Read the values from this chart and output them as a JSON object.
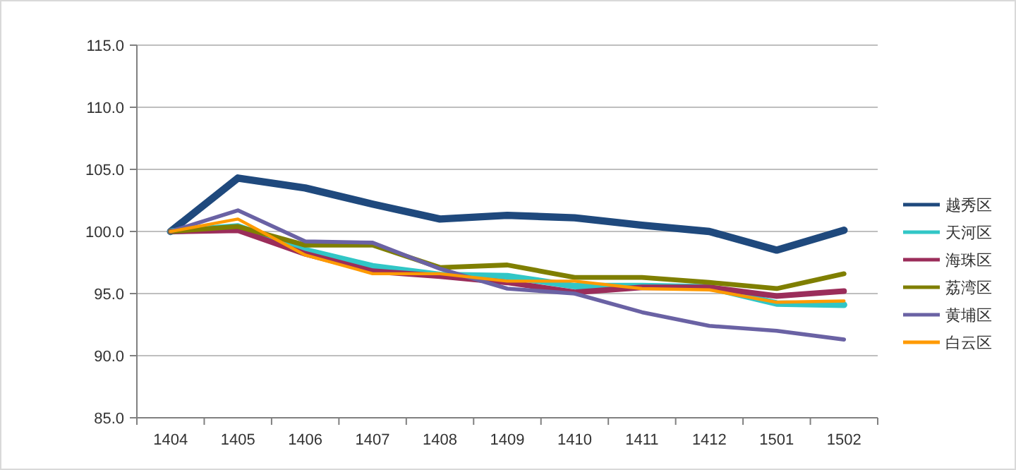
{
  "chart_data": {
    "type": "line",
    "categories": [
      "1404",
      "1405",
      "1406",
      "1407",
      "1408",
      "1409",
      "1410",
      "1411",
      "1412",
      "1501",
      "1502"
    ],
    "series": [
      {
        "name": "越秀区",
        "color": "#1f497d",
        "values": [
          100,
          104.3,
          103.5,
          102.2,
          101.0,
          101.3,
          101.1,
          100.5,
          100.0,
          98.5,
          100.1
        ]
      },
      {
        "name": "天河区",
        "color": "#31c6c6",
        "values": [
          100,
          100.4,
          98.5,
          97.2,
          96.5,
          96.4,
          95.6,
          95.6,
          95.5,
          94.2,
          94.1
        ]
      },
      {
        "name": "海珠区",
        "color": "#9b2d5a",
        "values": [
          100,
          100.1,
          98.2,
          96.8,
          96.4,
          95.9,
          95.1,
          95.5,
          95.5,
          94.8,
          95.2
        ]
      },
      {
        "name": "荔湾区",
        "color": "#7f7f00",
        "values": [
          100,
          100.4,
          98.9,
          98.9,
          97.1,
          97.3,
          96.3,
          96.3,
          95.9,
          95.4,
          96.6
        ]
      },
      {
        "name": "黄埔区",
        "color": "#6a62a4",
        "values": [
          100,
          101.7,
          99.2,
          99.1,
          97.0,
          95.4,
          95.0,
          93.5,
          92.4,
          92.0,
          91.3
        ]
      },
      {
        "name": "白云区",
        "color": "#ff9a00",
        "values": [
          100,
          101.0,
          98.1,
          96.6,
          96.6,
          96.0,
          96.0,
          95.4,
          95.3,
          94.3,
          94.4
        ]
      }
    ],
    "ylim": [
      85,
      115
    ],
    "yticks": [
      {
        "value": 85,
        "label": "85.0"
      },
      {
        "value": 90,
        "label": "90.0"
      },
      {
        "value": 95,
        "label": "95.0"
      },
      {
        "value": 100,
        "label": "100.0"
      },
      {
        "value": 105,
        "label": "105.0"
      },
      {
        "value": 110,
        "label": "110.0"
      },
      {
        "value": 115,
        "label": "115.0"
      }
    ],
    "grid": "y",
    "legend": "right",
    "marker": "none",
    "line_style": "solid"
  }
}
